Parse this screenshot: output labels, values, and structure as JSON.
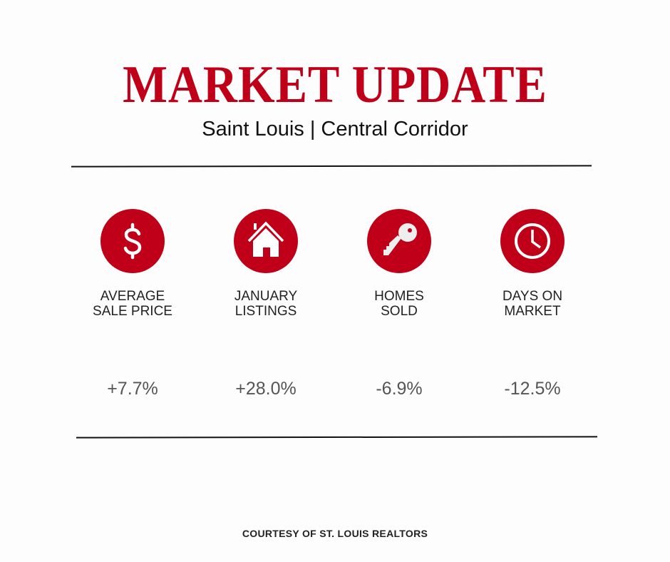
{
  "header": {
    "title": "MARKET UPDATE",
    "subtitle": "Saint Louis | Central Corridor"
  },
  "colors": {
    "accent": "#c00018"
  },
  "stats": [
    {
      "icon": "dollar-icon",
      "label_line1": "AVERAGE",
      "label_line2": "SALE PRICE",
      "value": "+7.7%"
    },
    {
      "icon": "house-icon",
      "label_line1": "JANUARY",
      "label_line2": "LISTINGS",
      "value": "+28.0%"
    },
    {
      "icon": "key-icon",
      "label_line1": "HOMES",
      "label_line2": "SOLD",
      "value": "-6.9%"
    },
    {
      "icon": "clock-icon",
      "label_line1": "DAYS ON",
      "label_line2": "MARKET",
      "value": "-12.5%"
    }
  ],
  "footer": {
    "text": "COURTESY OF ST. LOUIS REALTORS"
  }
}
